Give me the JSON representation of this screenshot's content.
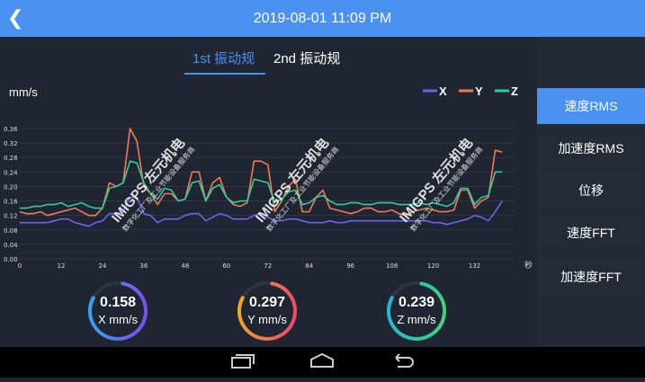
{
  "header": {
    "title": "2019-08-01 11:09 PM",
    "back_icon": "chevron-left-icon"
  },
  "tabs": [
    {
      "label": "1st 振动规",
      "active": true
    },
    {
      "label": "2nd 振动规",
      "active": false
    }
  ],
  "sidebar": {
    "items": [
      {
        "label": "速度RMS",
        "active": true
      },
      {
        "label": "加速度RMS"
      },
      {
        "label": "位移"
      },
      {
        "label": "速度FFT"
      },
      {
        "label": "加速度FFT"
      }
    ]
  },
  "colors": {
    "accent": "#4b91f1",
    "x": "#6a63f0",
    "y": "#f0795a",
    "z": "#2fcf9c"
  },
  "chart_data": {
    "type": "line",
    "ylabel": "mm/s",
    "xunit": "秒",
    "ylim": [
      0,
      0.36
    ],
    "xlim": [
      0,
      141
    ],
    "grid": true,
    "legend": "top-right",
    "xticks": [
      0,
      12,
      24,
      36,
      48,
      60,
      72,
      84,
      96,
      108,
      120,
      132
    ],
    "yticks": [
      "0.00",
      "0.04",
      "0.08",
      "0.12",
      "0.16",
      "0.20",
      "0.24",
      "0.28",
      "0.32",
      "0.36"
    ],
    "x_start": 0,
    "x_step": 2,
    "series": [
      {
        "name": "X",
        "values": [
          0.1,
          0.1,
          0.1,
          0.1,
          0.1,
          0.105,
          0.11,
          0.11,
          0.1,
          0.095,
          0.09,
          0.1,
          0.105,
          0.125,
          0.125,
          0.13,
          0.17,
          0.17,
          0.125,
          0.12,
          0.1,
          0.11,
          0.11,
          0.11,
          0.12,
          0.125,
          0.125,
          0.105,
          0.115,
          0.125,
          0.12,
          0.11,
          0.11,
          0.11,
          0.12,
          0.125,
          0.115,
          0.105,
          0.105,
          0.11,
          0.11,
          0.105,
          0.1,
          0.1,
          0.1,
          0.105,
          0.1,
          0.1,
          0.105,
          0.105,
          0.105,
          0.105,
          0.105,
          0.105,
          0.105,
          0.105,
          0.105,
          0.105,
          0.105,
          0.105,
          0.1,
          0.1,
          0.095,
          0.1,
          0.105,
          0.11,
          0.12,
          0.115,
          0.105,
          0.13,
          0.16
        ]
      },
      {
        "name": "Y",
        "values": [
          0.13,
          0.125,
          0.125,
          0.13,
          0.12,
          0.125,
          0.13,
          0.135,
          0.14,
          0.13,
          0.12,
          0.12,
          0.14,
          0.21,
          0.2,
          0.21,
          0.36,
          0.325,
          0.2,
          0.18,
          0.15,
          0.18,
          0.18,
          0.16,
          0.165,
          0.24,
          0.24,
          0.16,
          0.21,
          0.225,
          0.17,
          0.15,
          0.145,
          0.155,
          0.27,
          0.27,
          0.26,
          0.13,
          0.16,
          0.2,
          0.22,
          0.13,
          0.13,
          0.17,
          0.19,
          0.14,
          0.135,
          0.13,
          0.125,
          0.13,
          0.14,
          0.14,
          0.13,
          0.13,
          0.135,
          0.125,
          0.12,
          0.13,
          0.135,
          0.14,
          0.135,
          0.13,
          0.13,
          0.135,
          0.19,
          0.19,
          0.14,
          0.16,
          0.17,
          0.3,
          0.295
        ]
      },
      {
        "name": "Z",
        "values": [
          0.14,
          0.14,
          0.145,
          0.145,
          0.15,
          0.15,
          0.155,
          0.145,
          0.15,
          0.155,
          0.145,
          0.14,
          0.14,
          0.195,
          0.2,
          0.21,
          0.27,
          0.265,
          0.21,
          0.18,
          0.165,
          0.195,
          0.19,
          0.16,
          0.165,
          0.21,
          0.215,
          0.16,
          0.195,
          0.205,
          0.17,
          0.155,
          0.16,
          0.16,
          0.22,
          0.215,
          0.21,
          0.155,
          0.165,
          0.185,
          0.19,
          0.15,
          0.155,
          0.17,
          0.175,
          0.16,
          0.15,
          0.15,
          0.155,
          0.155,
          0.15,
          0.15,
          0.155,
          0.155,
          0.155,
          0.15,
          0.15,
          0.15,
          0.155,
          0.15,
          0.155,
          0.15,
          0.145,
          0.155,
          0.195,
          0.195,
          0.15,
          0.17,
          0.175,
          0.24,
          0.24
        ]
      }
    ]
  },
  "gauges": [
    {
      "value": "0.158",
      "label": "X mm/s",
      "c1": "#3aa0f0",
      "c2": "#7a4ff0"
    },
    {
      "value": "0.297",
      "label": "Y mm/s",
      "c1": "#f5a623",
      "c2": "#ee4a6a"
    },
    {
      "value": "0.239",
      "label": "Z mm/s",
      "c1": "#20b8d8",
      "c2": "#3ed17a"
    }
  ],
  "navbar": {
    "icons": [
      "recent-apps-icon",
      "home-icon",
      "back-icon"
    ]
  },
  "watermark": {
    "title": "IMIGPS 左元机电",
    "subtitle": "数字化工厂及工业节能设备服务商"
  }
}
